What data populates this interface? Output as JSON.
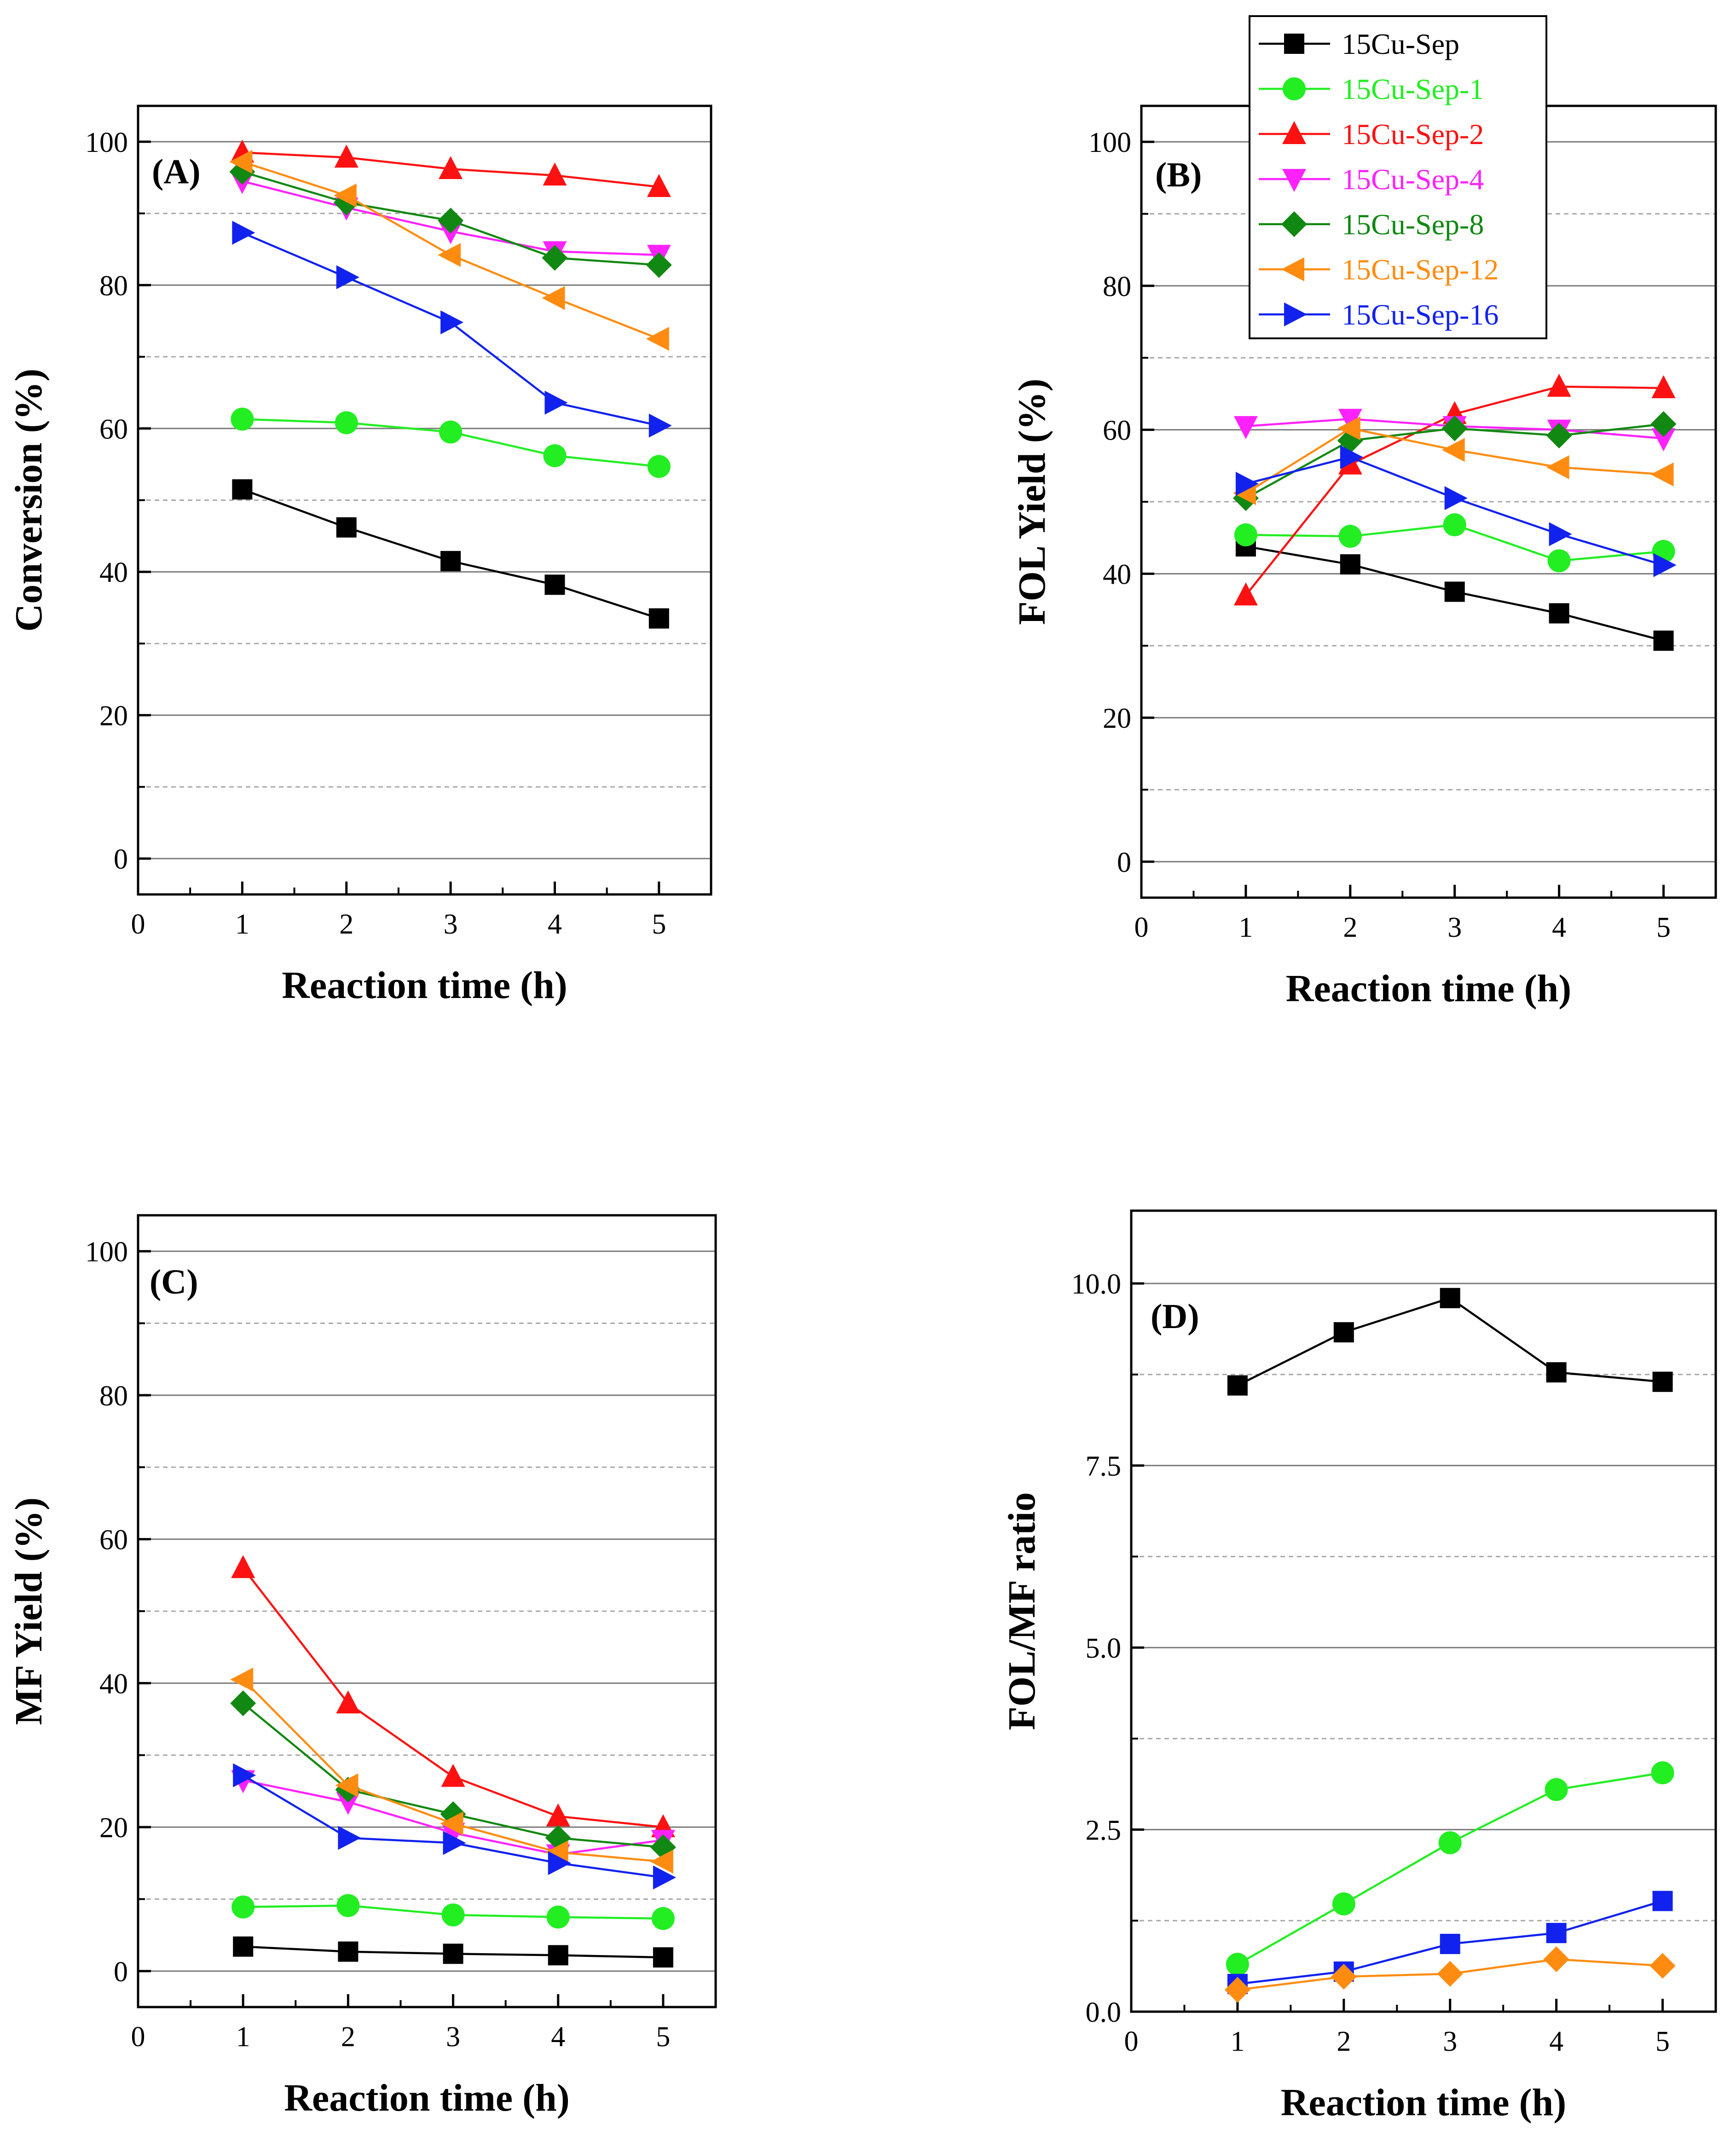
{
  "colors": {
    "15Cu-Sep": "#000000",
    "15Cu-Sep-1": "#22ee22",
    "15Cu-Sep-2": "#ff1111",
    "15Cu-Sep-4": "#ff22ff",
    "15Cu-Sep-8": "#118811",
    "15Cu-Sep-12": "#ff8c11",
    "15Cu-Sep-16": "#1122ee"
  },
  "markers": {
    "15Cu-Sep": "square",
    "15Cu-Sep-1": "circle",
    "15Cu-Sep-2": "triangle-up",
    "15Cu-Sep-4": "triangle-down",
    "15Cu-Sep-8": "diamond",
    "15Cu-Sep-12": "triangle-left",
    "15Cu-Sep-16": "triangle-right"
  },
  "legend": {
    "placement": "top, between panels A and B",
    "entries": [
      "15Cu-Sep",
      "15Cu-Sep-1",
      "15Cu-Sep-2",
      "15Cu-Sep-4",
      "15Cu-Sep-8",
      "15Cu-Sep-12",
      "15Cu-Sep-16"
    ]
  },
  "chart_data": [
    {
      "id": "A",
      "type": "line",
      "panel_label": "(A)",
      "xlabel": "Reaction time (h)",
      "ylabel": "Conversion (%)",
      "xlim": [
        0,
        5.5
      ],
      "ylim": [
        -5,
        105
      ],
      "xticks": [
        0,
        1,
        2,
        3,
        4,
        5
      ],
      "yticks": [
        0,
        20,
        40,
        60,
        80,
        100
      ],
      "ytick_labels": [
        "0",
        "20",
        "40",
        "60",
        "80",
        "100"
      ],
      "grid": {
        "major": true,
        "minor_dashed": true
      },
      "x": [
        1,
        2,
        3,
        4,
        5
      ],
      "series": [
        {
          "name": "15Cu-Sep",
          "values": [
            51.5,
            46.2,
            41.5,
            38.2,
            33.5
          ]
        },
        {
          "name": "15Cu-Sep-1",
          "values": [
            61.3,
            60.8,
            59.5,
            56.2,
            54.7
          ]
        },
        {
          "name": "15Cu-Sep-2",
          "values": [
            98.5,
            97.8,
            96.2,
            95.3,
            93.7
          ]
        },
        {
          "name": "15Cu-Sep-4",
          "values": [
            94.5,
            90.8,
            87.5,
            84.7,
            84.2
          ]
        },
        {
          "name": "15Cu-Sep-8",
          "values": [
            95.8,
            91.5,
            89.0,
            83.8,
            82.8
          ]
        },
        {
          "name": "15Cu-Sep-12",
          "values": [
            97.2,
            92.5,
            84.2,
            78.2,
            72.5
          ]
        },
        {
          "name": "15Cu-Sep-16",
          "values": [
            87.3,
            81.1,
            74.8,
            63.6,
            60.4
          ]
        }
      ]
    },
    {
      "id": "B",
      "type": "line",
      "panel_label": "(B)",
      "xlabel": "Reaction time (h)",
      "ylabel": "FOL Yield (%)",
      "xlim": [
        0,
        5.5
      ],
      "ylim": [
        -5,
        105
      ],
      "xticks": [
        0,
        1,
        2,
        3,
        4,
        5
      ],
      "yticks": [
        0,
        20,
        40,
        60,
        80,
        100
      ],
      "ytick_labels": [
        "0",
        "20",
        "40",
        "60",
        "80",
        "100"
      ],
      "grid": {
        "major": true,
        "minor_dashed": true
      },
      "x": [
        1,
        2,
        3,
        4,
        5
      ],
      "series": [
        {
          "name": "15Cu-Sep",
          "values": [
            43.8,
            41.3,
            37.5,
            34.5,
            30.7
          ]
        },
        {
          "name": "15Cu-Sep-1",
          "values": [
            45.4,
            45.2,
            46.8,
            41.8,
            43.1
          ]
        },
        {
          "name": "15Cu-Sep-2",
          "values": [
            37.0,
            55.2,
            62.2,
            66.0,
            65.8
          ]
        },
        {
          "name": "15Cu-Sep-4",
          "values": [
            60.5,
            61.5,
            60.5,
            60.0,
            58.8
          ]
        },
        {
          "name": "15Cu-Sep-8",
          "values": [
            50.5,
            58.5,
            60.2,
            59.2,
            60.8
          ]
        },
        {
          "name": "15Cu-Sep-12",
          "values": [
            51.2,
            60.2,
            57.2,
            54.8,
            53.8
          ]
        },
        {
          "name": "15Cu-Sep-16",
          "values": [
            52.5,
            56.2,
            50.5,
            45.5,
            41.2
          ]
        }
      ]
    },
    {
      "id": "C",
      "type": "line",
      "panel_label": "(C)",
      "xlabel": "Reaction time (h)",
      "ylabel": "MF Yield (%)",
      "xlim": [
        0,
        5.5
      ],
      "ylim": [
        -5,
        105
      ],
      "xticks": [
        0,
        1,
        2,
        3,
        4,
        5
      ],
      "yticks": [
        0,
        20,
        40,
        60,
        80,
        100
      ],
      "ytick_labels": [
        "0",
        "20",
        "40",
        "60",
        "80",
        "100"
      ],
      "grid": {
        "major": true,
        "minor_dashed": true
      },
      "x": [
        1,
        2,
        3,
        4,
        5
      ],
      "series": [
        {
          "name": "15Cu-Sep",
          "values": [
            3.4,
            2.7,
            2.4,
            2.2,
            1.9
          ]
        },
        {
          "name": "15Cu-Sep-1",
          "values": [
            8.9,
            9.1,
            7.8,
            7.5,
            7.3
          ]
        },
        {
          "name": "15Cu-Sep-2",
          "values": [
            56.0,
            37.2,
            27.0,
            21.5,
            20.0
          ]
        },
        {
          "name": "15Cu-Sep-4",
          "values": [
            26.5,
            23.5,
            19.2,
            16.2,
            18.2
          ]
        },
        {
          "name": "15Cu-Sep-8",
          "values": [
            37.2,
            25.2,
            21.8,
            18.5,
            17.2
          ]
        },
        {
          "name": "15Cu-Sep-12",
          "values": [
            40.5,
            25.8,
            20.5,
            16.5,
            15.2
          ]
        },
        {
          "name": "15Cu-Sep-16",
          "values": [
            27.2,
            18.5,
            17.8,
            15.0,
            13.0
          ]
        }
      ]
    },
    {
      "id": "D",
      "type": "line",
      "panel_label": "(D)",
      "xlabel": "Reaction time (h)",
      "ylabel": "FOL/MF ratio",
      "xlim": [
        0,
        5.5
      ],
      "ylim": [
        0,
        11
      ],
      "xticks": [
        0,
        1,
        2,
        3,
        4,
        5
      ],
      "yticks": [
        0,
        2.5,
        5,
        7.5,
        10
      ],
      "ytick_labels": [
        "0.0",
        "2.5",
        "5.0",
        "7.5",
        "10.0"
      ],
      "grid": {
        "major": true,
        "minor_dashed": true
      },
      "x": [
        1,
        2,
        3,
        4,
        5
      ],
      "series": [
        {
          "name": "15Cu-Sep",
          "values": [
            8.6,
            9.33,
            9.8,
            8.78,
            8.65
          ]
        },
        {
          "name": "15Cu-Sep-1",
          "values": [
            0.65,
            1.48,
            2.32,
            3.05,
            3.28
          ]
        },
        {
          "name": "15Cu-Sep-16",
          "values": [
            0.38,
            0.55,
            0.93,
            1.08,
            1.52
          ]
        },
        {
          "name": "15Cu-Sep-12",
          "values": [
            0.3,
            0.48,
            0.52,
            0.72,
            0.63
          ]
        }
      ],
      "marker_override": {
        "15Cu-Sep-16": "square",
        "15Cu-Sep-12": "diamond"
      }
    }
  ]
}
